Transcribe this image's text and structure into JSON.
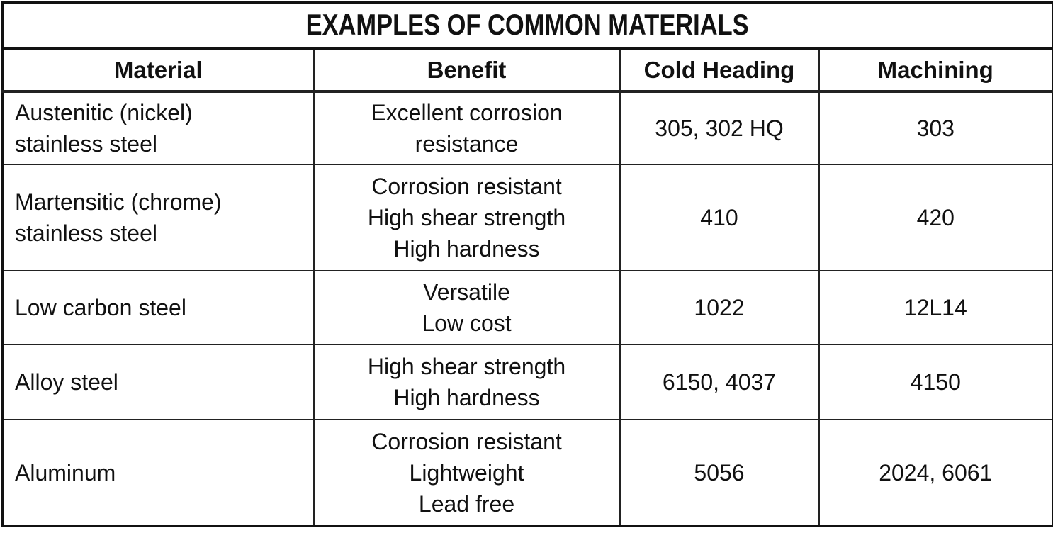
{
  "title": "EXAMPLES OF COMMON MATERIALS",
  "table": {
    "header": [
      "Material",
      "Benefit",
      "Cold Heading",
      "Machining"
    ],
    "rows": [
      [
        [
          "Austenitic (nickel)",
          "stainless steel"
        ],
        [
          "Excellent corrosion",
          "resistance"
        ],
        "305, 302 HQ",
        "303"
      ],
      [
        [
          "Martensitic (chrome)",
          "stainless steel"
        ],
        [
          "Corrosion resistant",
          "High shear strength",
          "High hardness"
        ],
        "410",
        "420"
      ],
      [
        "Low carbon steel",
        [
          "Versatile",
          "Low cost"
        ],
        "1022",
        "12L14"
      ],
      [
        "Alloy steel",
        [
          "High shear strength",
          "High hardness"
        ],
        "6150, 4037",
        "4150"
      ],
      [
        "Aluminum",
        [
          "Corrosion resistant",
          "Lightweight",
          "Lead free"
        ],
        "5056",
        "2024, 6061"
      ]
    ]
  }
}
